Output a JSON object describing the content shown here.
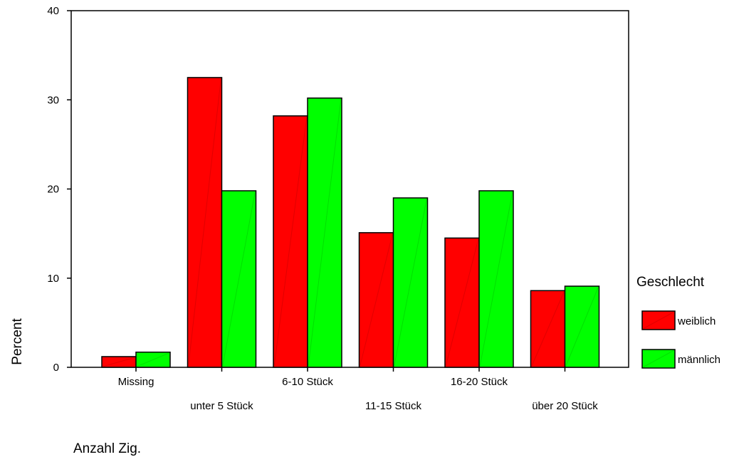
{
  "chart_data": {
    "type": "bar",
    "xlabel": "Anzahl Zig.",
    "ylabel": "Percent",
    "ylim": [
      0,
      40
    ],
    "yticks": [
      0,
      10,
      20,
      30,
      40
    ],
    "grid": false,
    "legend_position": "right",
    "legend_title": "Geschlecht",
    "categories": [
      "Missing",
      "unter 5 Stück",
      "6-10 Stück",
      "11-15 Stück",
      "16-20 Stück",
      "über 20 Stück"
    ],
    "series": [
      {
        "name": "weiblich",
        "color": "#ff0000",
        "values": [
          1.2,
          32.5,
          28.2,
          15.1,
          14.5,
          8.6
        ]
      },
      {
        "name": "männlich",
        "color": "#00ff00",
        "values": [
          1.7,
          19.8,
          30.2,
          19.0,
          19.8,
          9.1
        ]
      }
    ]
  }
}
